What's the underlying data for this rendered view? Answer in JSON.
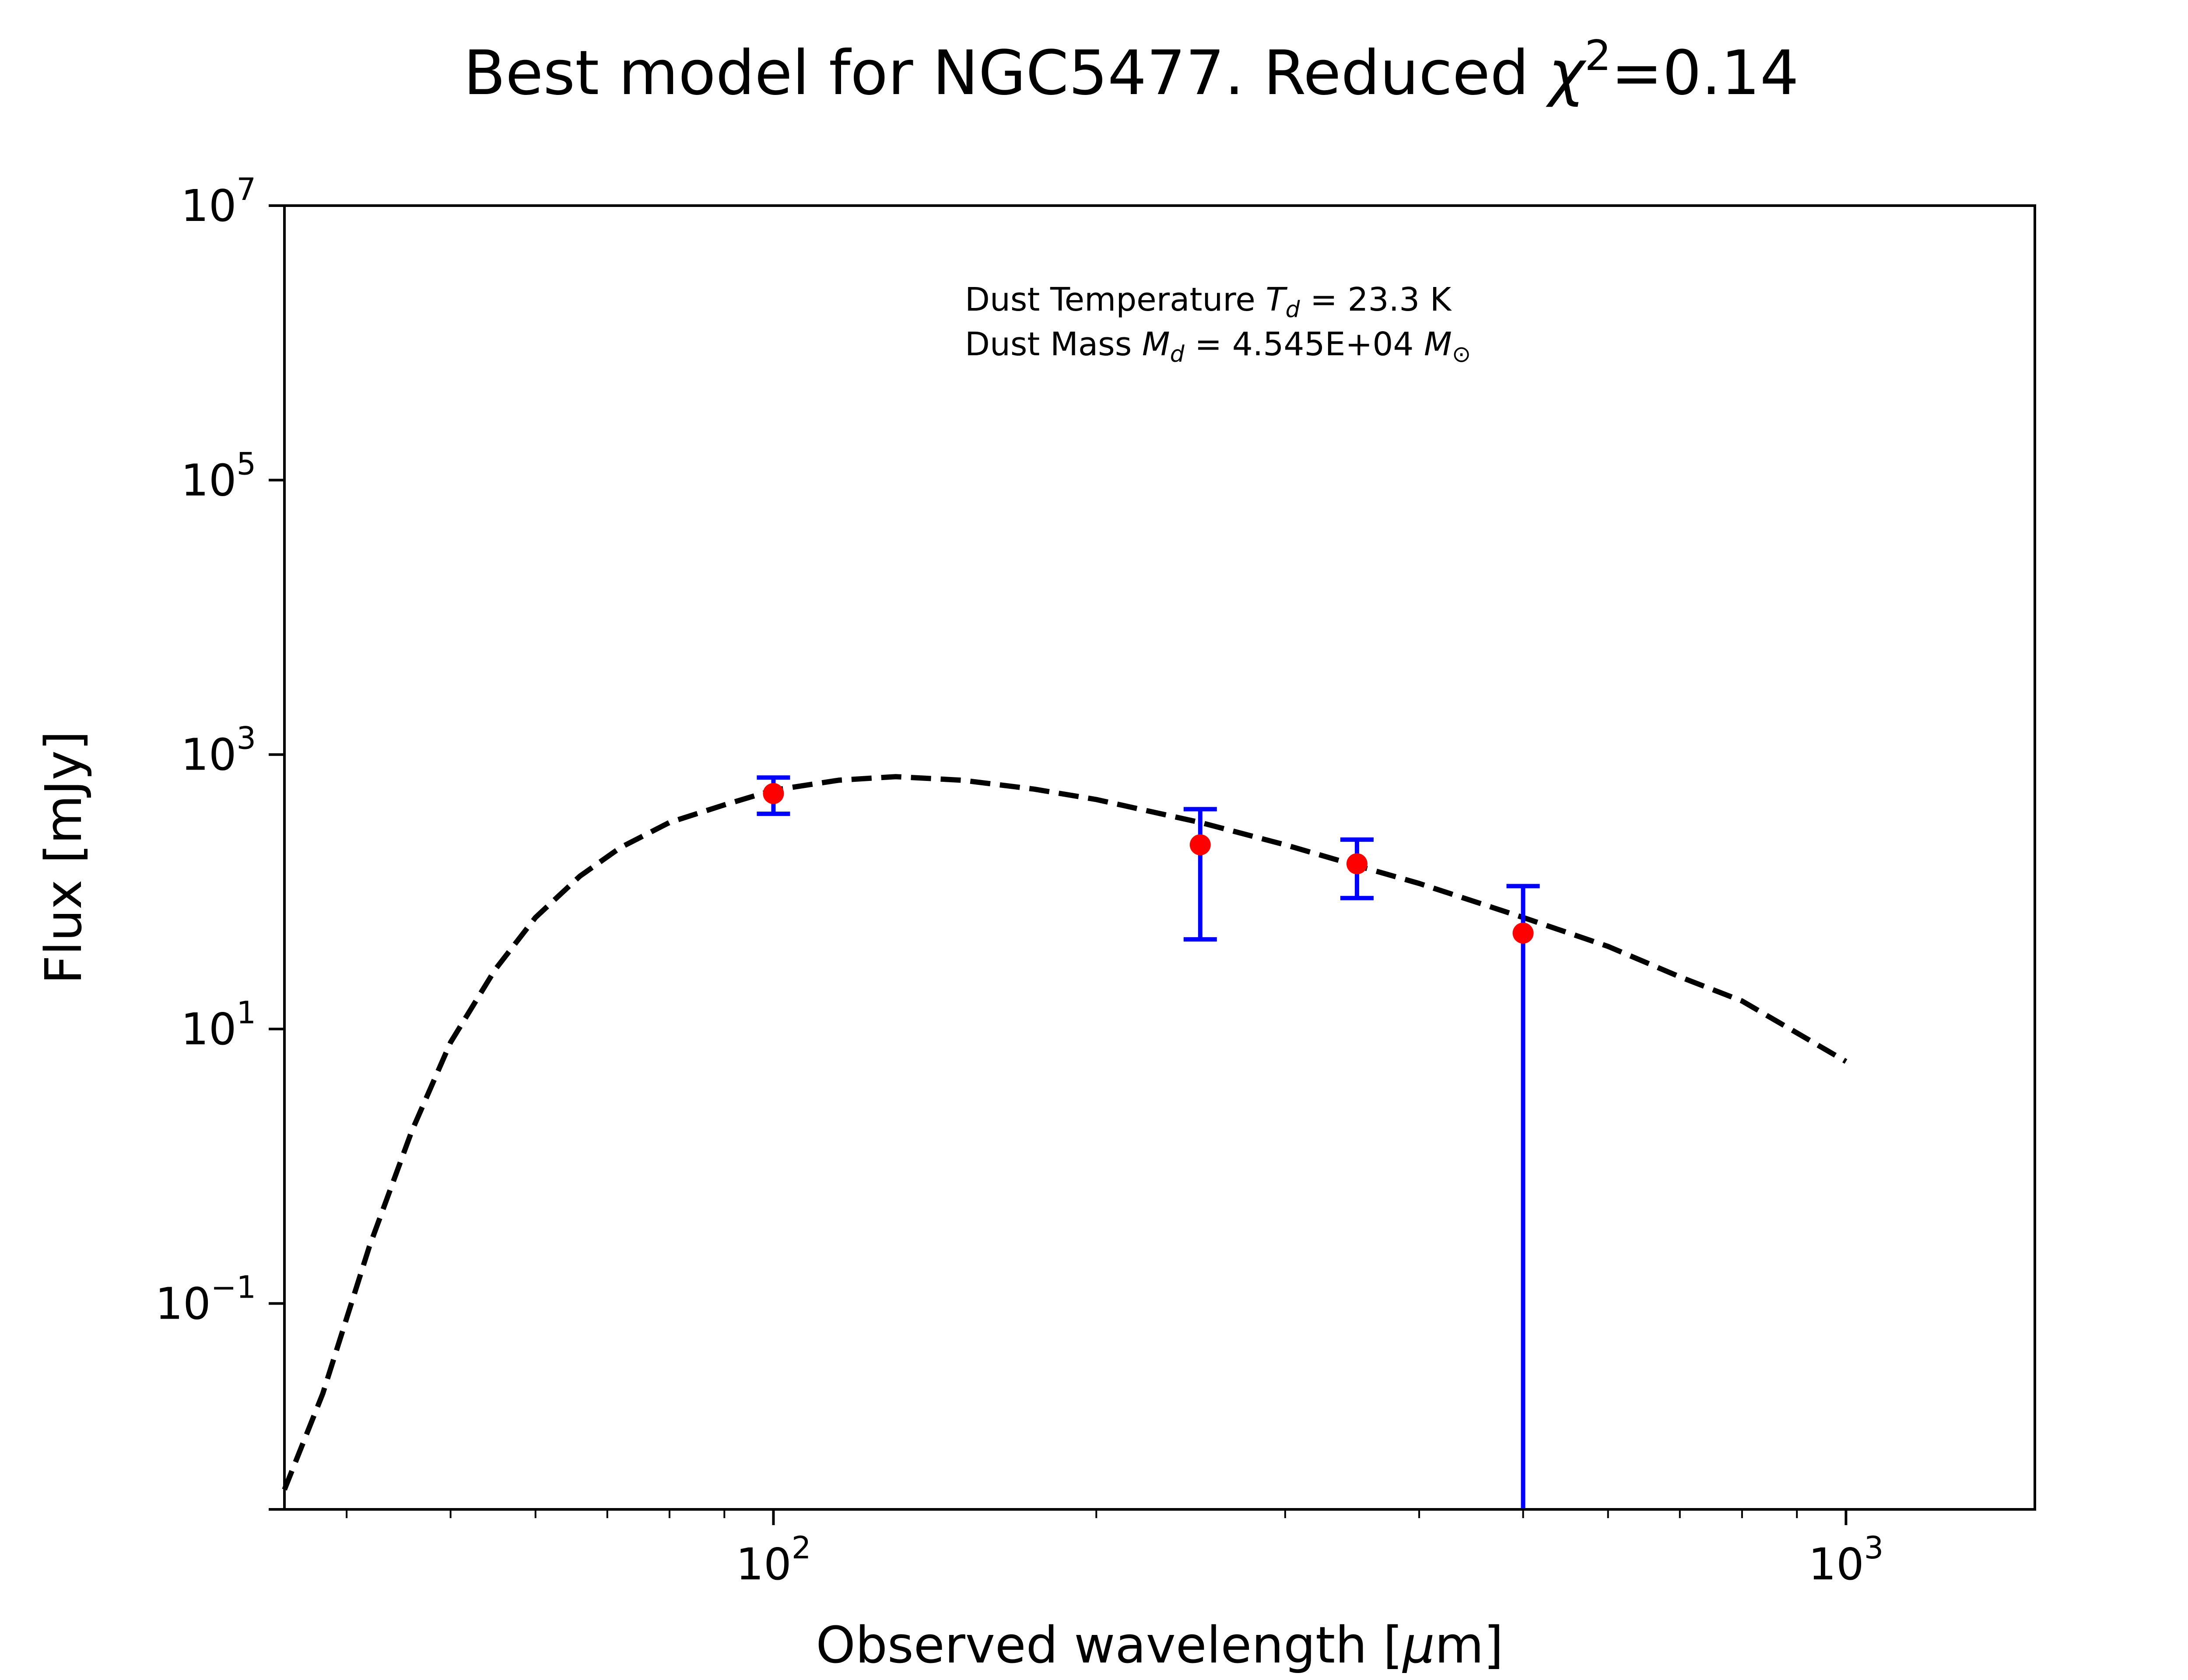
{
  "chart_data": {
    "type": "line",
    "title": "Best model for NGC5477. Reduced χ²=0.14",
    "title_main": "Best model for NGC5477. Reduced ",
    "title_symbol": "χ",
    "title_sup": "2",
    "title_tail": "=0.14",
    "xlabel": "Observed wavelength [μm]",
    "xlabel_main": "Observed wavelength [",
    "xlabel_symbol": "μ",
    "xlabel_tail": "m]",
    "ylabel": "Flux [mJy]",
    "xscale": "log",
    "yscale": "log",
    "xlim": [
      35,
      1500
    ],
    "ylim": [
      0.00316,
      10000000
    ],
    "grid": false,
    "x_ticks": [
      {
        "value": 100,
        "base": "10",
        "exp": "2"
      },
      {
        "value": 1000,
        "base": "10",
        "exp": "3"
      }
    ],
    "y_ticks": [
      {
        "value": 0.1,
        "base": "10",
        "exp": "−1"
      },
      {
        "value": 10,
        "base": "10",
        "exp": "1"
      },
      {
        "value": 1000,
        "base": "10",
        "exp": "3"
      },
      {
        "value": 100000,
        "base": "10",
        "exp": "5"
      },
      {
        "value": 10000000,
        "base": "10",
        "exp": "7"
      }
    ],
    "annotation": {
      "line1_prefix": "Dust Temperature ",
      "line1_sym": "T",
      "line1_sub": "d",
      "line1_value": " = 23.3 K",
      "line2_prefix": "Dust Mass ",
      "line2_sym": "M",
      "line2_sub": "d",
      "line2_value": " = 4.545E+04 ",
      "line2_unit": "M",
      "line2_unit_sub": "⊙"
    },
    "model_curve": {
      "style": "dashed",
      "color": "#000000",
      "x": [
        35,
        38,
        42,
        46,
        50,
        55,
        60,
        66,
        72,
        80,
        90,
        100,
        115,
        130,
        150,
        175,
        200,
        250,
        300,
        350,
        400,
        500,
        600,
        700,
        800,
        1000
      ],
      "y": [
        0.0044,
        0.022,
        0.26,
        1.8,
        8.0,
        27,
        65,
        130,
        210,
        320,
        430,
        550,
        650,
        690,
        650,
        560,
        470,
        320,
        220,
        155,
        115,
        65,
        40,
        24,
        16,
        5.8
      ]
    },
    "observations": {
      "marker_color": "#ff0000",
      "errorbar_color": "#0000ff",
      "points": [
        {
          "x": 100,
          "y": 520,
          "yerr_low": 370,
          "yerr_high": 680
        },
        {
          "x": 250,
          "y": 220,
          "yerr_low": 45,
          "yerr_high": 400
        },
        {
          "x": 350,
          "y": 160,
          "yerr_low": 90,
          "yerr_high": 240
        },
        {
          "x": 500,
          "y": 50,
          "yerr_low": 0.00316,
          "yerr_high": 110
        }
      ]
    }
  }
}
